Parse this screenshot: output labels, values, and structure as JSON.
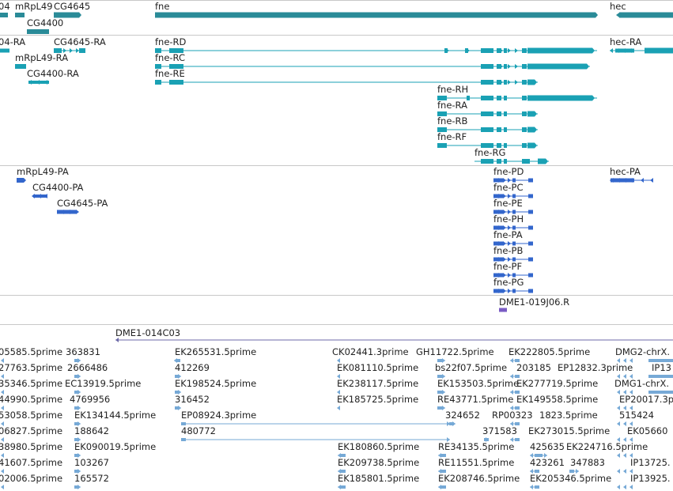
{
  "colors": {
    "gene": "#2a8b98",
    "transcript": "#1aa1b4",
    "protein": "#3366cc",
    "clone": "#7a5cc4",
    "est": "#76a9d6",
    "separator": "#c8c8c8"
  },
  "tracks": {
    "genes": {
      "labels": [
        "04",
        "mRpL49",
        "CG4645",
        "CG4400",
        "fne",
        "hec"
      ]
    },
    "transcripts": {
      "labels": [
        "04-RA",
        "CG4645-RA",
        "mRpL49-RA",
        "CG4400-RA",
        "fne-RD",
        "fne-RC",
        "fne-RE",
        "fne-RH",
        "fne-RA",
        "fne-RB",
        "fne-RF",
        "fne-RG",
        "hec-RA"
      ]
    },
    "proteins": {
      "labels": [
        "mRpL49-PA",
        "CG4400-PA",
        "CG4645-PA",
        "fne-PD",
        "fne-PC",
        "fne-PE",
        "fne-PH",
        "fne-PA",
        "fne-PB",
        "fne-PF",
        "fne-PG",
        "hec-PA"
      ]
    },
    "clones": {
      "labels": [
        "DME1-019J06.R"
      ]
    },
    "ests": {
      "scaffold": "DME1-014C03",
      "labels": [
        "05585.5prime",
        "363831",
        "EK265531.5prime",
        "CK02441.3prime",
        "GH11722.5prime",
        "EK222805.5prime",
        "DMG2-chrX.",
        "27763.5prime",
        "2666486",
        "412269",
        "EK081110.5prime",
        "bs22f07.5prime",
        "203185",
        "EP12832.3prime",
        "IP13",
        "35346.5prime",
        "EC13919.5prime",
        "EK198524.5prime",
        "EK238117.5prime",
        "EK153503.5prime",
        "EK277719.5prime",
        "DMG1-chrX.",
        "44990.5prime",
        "4769956",
        "316452",
        "EK185725.5prime",
        "RE43771.5prime",
        "EK149558.5prime",
        "EP20017.3p",
        "53058.5prime",
        "EK134144.5prime",
        "EP08924.3prime",
        "324652",
        "RP00323",
        "1823.5prime",
        "515424",
        "06827.5prime",
        "188642",
        "480772",
        "371583",
        "EK273015.5prime",
        "EK05660",
        "38980.5prime",
        "EK090019.5prime",
        "EK180860.5prime",
        "RE34135.5prime",
        "425635",
        "EK224716.5prime",
        "41607.5prime",
        "103267",
        "EK209738.5prime",
        "RE11551.5prime",
        "423261",
        "347883",
        "IP13725.",
        "02006.5prime",
        "165572",
        "EK185801.5prime",
        "EK208746.5prime",
        "EK205346.5prime",
        "IP13925."
      ]
    }
  }
}
